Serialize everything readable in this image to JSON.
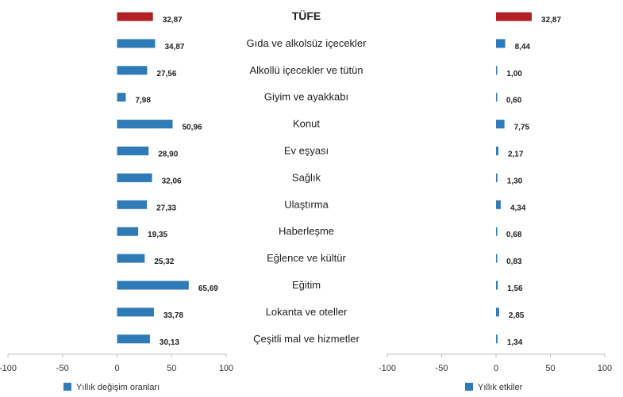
{
  "chart_data": {
    "type": "bar",
    "orientation": "horizontal",
    "categories": [
      "TÜFE",
      "Gıda ve alkolsüz içecekler",
      "Alkollü içecekler ve tütün",
      "Giyim ve ayakkabı",
      "Konut",
      "Ev eşyası",
      "Sağlık",
      "Ulaştırma",
      "Haberleşme",
      "Eğlence ve kültür",
      "Eğitim",
      "Lokanta ve oteller",
      "Çeşitli mal ve hizmetler"
    ],
    "panels": [
      {
        "series_name": "Yıllık değişim oranları",
        "values": [
          32.87,
          34.87,
          27.56,
          7.98,
          50.96,
          28.9,
          32.06,
          27.33,
          19.35,
          25.32,
          65.69,
          33.78,
          30.13
        ],
        "value_labels": [
          "32,87",
          "34,87",
          "27,56",
          "7,98",
          "50,96",
          "28,90",
          "32,06",
          "27,33",
          "19,35",
          "25,32",
          "65,69",
          "33,78",
          "30,13"
        ],
        "xlim": [
          -100,
          100
        ],
        "ticks": [
          "-100",
          "-50",
          "0",
          "50",
          "100"
        ],
        "tick_values": [
          -100,
          -50,
          0,
          50,
          100
        ]
      },
      {
        "series_name": "Yıllık etkiler",
        "values": [
          32.87,
          8.44,
          1.0,
          0.6,
          7.75,
          2.17,
          1.3,
          4.34,
          0.68,
          0.83,
          1.56,
          2.85,
          1.34
        ],
        "value_labels": [
          "32,87",
          "8,44",
          "1,00",
          "0,60",
          "7,75",
          "2,17",
          "1,30",
          "4,34",
          "0,68",
          "0,83",
          "1,56",
          "2,85",
          "1,34"
        ],
        "xlim": [
          -100,
          100
        ],
        "ticks": [
          "-100",
          "-50",
          "0",
          "50",
          "100"
        ],
        "tick_values": [
          -100,
          -50,
          0,
          50,
          100
        ]
      }
    ],
    "colors": {
      "total": "#B02025",
      "bar": "#2E7BB8",
      "axis": "#BFBFBF"
    },
    "highlight_index": 0,
    "grid": false,
    "legend_position": "bottom-left"
  }
}
